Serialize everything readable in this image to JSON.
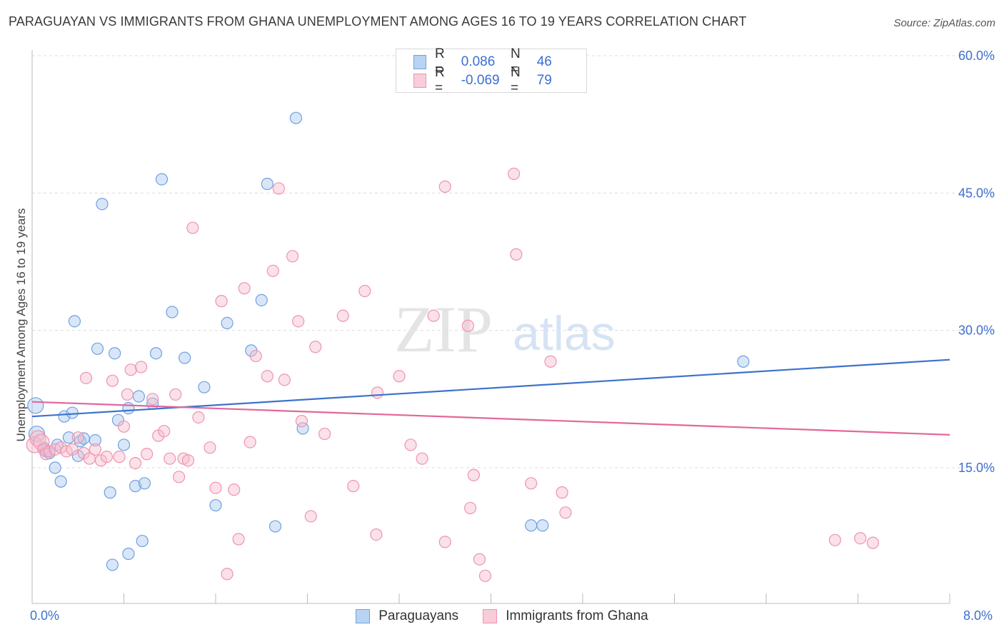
{
  "title": "PARAGUAYAN VS IMMIGRANTS FROM GHANA UNEMPLOYMENT AMONG AGES 16 TO 19 YEARS CORRELATION CHART",
  "source": "Source: ZipAtlas.com",
  "watermark": {
    "zip": "ZIP",
    "atlas": "atlas"
  },
  "legend_top": {
    "rows": [
      {
        "r_label": "R =",
        "r_value": "0.086",
        "n_label": "N =",
        "n_value": "46",
        "color": "#a9c8f0"
      },
      {
        "r_label": "R =",
        "r_value": "-0.069",
        "n_label": "N =",
        "n_value": "79",
        "color": "#f6bccd"
      }
    ]
  },
  "bottom_legend": [
    {
      "label": "Paraguayans",
      "color": "#a9c8f0"
    },
    {
      "label": "Immigrants from Ghana",
      "color": "#f6bccd"
    }
  ],
  "x_tick_labels": {
    "left": "0.0%",
    "right": "8.0%"
  },
  "chart_data": {
    "type": "scatter",
    "title": "PARAGUAYAN VS IMMIGRANTS FROM GHANA UNEMPLOYMENT AMONG AGES 16 TO 19 YEARS CORRELATION CHART",
    "xlabel": "",
    "ylabel": "Unemployment Among Ages 16 to 19 years",
    "xlim": [
      0,
      8
    ],
    "ylim": [
      0,
      63
    ],
    "y_ticks": [
      15,
      30,
      45,
      60
    ],
    "y_tick_labels": [
      "15.0%",
      "30.0%",
      "45.0%",
      "60.0%"
    ],
    "grid": true,
    "legend_position": "top-center",
    "series": [
      {
        "name": "Paraguayans",
        "color": "#6fa1e0",
        "fill": "#a9c8f0",
        "trend": {
          "x": [
            0,
            8
          ],
          "y": [
            20.6,
            26.8
          ],
          "color": "#3d72cc"
        },
        "points": [
          [
            0.03,
            21.8
          ],
          [
            0.04,
            18.7
          ],
          [
            0.1,
            17.2
          ],
          [
            0.12,
            16.8
          ],
          [
            0.15,
            16.6
          ],
          [
            0.2,
            15.0
          ],
          [
            0.22,
            17.5
          ],
          [
            0.25,
            13.5
          ],
          [
            0.28,
            20.6
          ],
          [
            0.32,
            18.3
          ],
          [
            0.35,
            21.0
          ],
          [
            0.4,
            16.3
          ],
          [
            0.42,
            17.9
          ],
          [
            0.45,
            18.2
          ],
          [
            0.37,
            31.0
          ],
          [
            0.57,
            28.0
          ],
          [
            0.61,
            43.8
          ],
          [
            0.68,
            12.3
          ],
          [
            0.72,
            27.5
          ],
          [
            0.75,
            20.2
          ],
          [
            0.8,
            17.5
          ],
          [
            0.84,
            21.5
          ],
          [
            0.84,
            5.6
          ],
          [
            0.9,
            13.0
          ],
          [
            0.93,
            22.8
          ],
          [
            0.96,
            7.0
          ],
          [
            0.98,
            13.3
          ],
          [
            1.08,
            27.5
          ],
          [
            1.13,
            46.5
          ],
          [
            1.22,
            32.0
          ],
          [
            1.33,
            27.0
          ],
          [
            1.5,
            23.8
          ],
          [
            1.6,
            10.9
          ],
          [
            1.7,
            30.8
          ],
          [
            1.91,
            27.8
          ],
          [
            2.0,
            33.3
          ],
          [
            2.05,
            46.0
          ],
          [
            2.12,
            8.6
          ],
          [
            2.3,
            53.2
          ],
          [
            2.36,
            19.3
          ],
          [
            4.35,
            8.7
          ],
          [
            4.45,
            8.7
          ],
          [
            6.2,
            26.6
          ],
          [
            0.7,
            4.4
          ],
          [
            0.55,
            18.0
          ],
          [
            1.05,
            22.0
          ]
        ]
      },
      {
        "name": "Immigrants from Ghana",
        "color": "#ee94b0",
        "fill": "#f6bccd",
        "trend": {
          "x": [
            0,
            8
          ],
          "y": [
            22.2,
            18.6
          ],
          "color": "#e2689a"
        },
        "points": [
          [
            0.02,
            17.5
          ],
          [
            0.05,
            18.2
          ],
          [
            0.08,
            17.8
          ],
          [
            0.1,
            17.0
          ],
          [
            0.12,
            16.5
          ],
          [
            0.15,
            16.8
          ],
          [
            0.2,
            17.0
          ],
          [
            0.25,
            17.2
          ],
          [
            0.3,
            16.8
          ],
          [
            0.35,
            17.0
          ],
          [
            0.4,
            18.3
          ],
          [
            0.45,
            16.6
          ],
          [
            0.47,
            24.8
          ],
          [
            0.5,
            16.0
          ],
          [
            0.55,
            17.0
          ],
          [
            0.6,
            15.8
          ],
          [
            0.65,
            16.2
          ],
          [
            0.7,
            24.5
          ],
          [
            0.76,
            16.2
          ],
          [
            0.8,
            19.5
          ],
          [
            0.83,
            23.0
          ],
          [
            0.86,
            25.7
          ],
          [
            0.9,
            15.5
          ],
          [
            0.95,
            26.0
          ],
          [
            1.0,
            16.5
          ],
          [
            1.05,
            22.5
          ],
          [
            1.1,
            18.5
          ],
          [
            1.15,
            19.0
          ],
          [
            1.2,
            16.0
          ],
          [
            1.25,
            23.0
          ],
          [
            1.28,
            14.0
          ],
          [
            1.32,
            16.0
          ],
          [
            1.36,
            15.8
          ],
          [
            1.4,
            41.2
          ],
          [
            1.45,
            20.5
          ],
          [
            1.55,
            17.2
          ],
          [
            1.6,
            12.8
          ],
          [
            1.65,
            33.2
          ],
          [
            1.7,
            3.4
          ],
          [
            1.76,
            12.6
          ],
          [
            1.8,
            7.2
          ],
          [
            1.85,
            34.6
          ],
          [
            1.9,
            17.8
          ],
          [
            1.95,
            27.2
          ],
          [
            2.05,
            25.0
          ],
          [
            2.1,
            36.5
          ],
          [
            2.15,
            45.5
          ],
          [
            2.2,
            24.6
          ],
          [
            2.27,
            38.1
          ],
          [
            2.32,
            31.0
          ],
          [
            2.35,
            20.1
          ],
          [
            2.43,
            9.7
          ],
          [
            2.47,
            28.2
          ],
          [
            2.55,
            18.7
          ],
          [
            2.71,
            31.6
          ],
          [
            2.8,
            13.0
          ],
          [
            2.9,
            34.3
          ],
          [
            3.0,
            7.7
          ],
          [
            3.01,
            23.2
          ],
          [
            3.2,
            25.0
          ],
          [
            3.3,
            17.5
          ],
          [
            3.4,
            16.0
          ],
          [
            3.5,
            31.6
          ],
          [
            3.6,
            6.9
          ],
          [
            3.6,
            45.7
          ],
          [
            3.8,
            30.5
          ],
          [
            3.82,
            10.6
          ],
          [
            3.85,
            14.2
          ],
          [
            3.9,
            5.0
          ],
          [
            3.95,
            3.2
          ],
          [
            4.2,
            47.1
          ],
          [
            4.22,
            38.3
          ],
          [
            4.35,
            13.3
          ],
          [
            4.52,
            26.6
          ],
          [
            4.62,
            12.3
          ],
          [
            4.65,
            10.1
          ],
          [
            7.22,
            7.3
          ],
          [
            7.33,
            6.8
          ],
          [
            7.0,
            7.1
          ]
        ]
      }
    ]
  }
}
